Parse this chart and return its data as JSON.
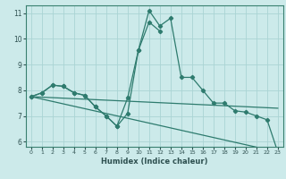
{
  "xlabel": "Humidex (Indice chaleur)",
  "bg_color": "#cceaea",
  "line_color": "#2e7b6e",
  "grid_color": "#aad4d4",
  "xlim": [
    -0.5,
    23.5
  ],
  "ylim": [
    5.8,
    11.3
  ],
  "yticks": [
    6,
    7,
    8,
    9,
    10,
    11
  ],
  "xticks": [
    0,
    1,
    2,
    3,
    4,
    5,
    6,
    7,
    8,
    9,
    10,
    11,
    12,
    13,
    14,
    15,
    16,
    17,
    18,
    19,
    20,
    21,
    22,
    23
  ],
  "series": [
    {
      "x": [
        0,
        1,
        2,
        3,
        4,
        5,
        6,
        7,
        8,
        9,
        10,
        11,
        12,
        13,
        14,
        15,
        16,
        17,
        18,
        19,
        20,
        21,
        22,
        23
      ],
      "y": [
        7.75,
        7.9,
        8.2,
        8.15,
        7.9,
        7.8,
        7.35,
        7.0,
        6.6,
        7.1,
        9.55,
        11.1,
        10.5,
        10.8,
        8.5,
        8.5,
        8.0,
        7.5,
        7.5,
        7.2,
        7.15,
        7.0,
        6.85,
        5.6
      ],
      "marker": true
    },
    {
      "x": [
        0,
        1,
        2,
        3,
        4,
        5,
        6,
        7,
        8,
        9,
        10,
        11,
        12
      ],
      "y": [
        7.75,
        7.9,
        8.2,
        8.15,
        7.9,
        7.8,
        7.35,
        7.0,
        6.6,
        7.7,
        9.55,
        10.65,
        10.3
      ],
      "marker": true
    },
    {
      "x": [
        0,
        23
      ],
      "y": [
        7.75,
        7.3
      ],
      "marker": false
    },
    {
      "x": [
        0,
        23
      ],
      "y": [
        7.75,
        5.6
      ],
      "marker": false
    }
  ]
}
